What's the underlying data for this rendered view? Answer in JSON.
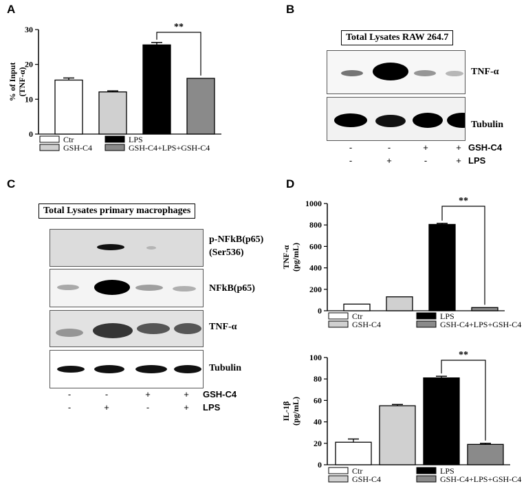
{
  "panels": {
    "A": "A",
    "B": "B",
    "C": "C",
    "D": "D"
  },
  "legend": {
    "ctr": "Ctr",
    "lps": "LPS",
    "gsh": "GSH-C4",
    "combo": "GSH-C4+LPS+GSH-C4"
  },
  "colors": {
    "ctr": "#ffffff",
    "gsh": "#d0d0d0",
    "lps": "#000000",
    "combo": "#8a8a8a"
  },
  "significance": "**",
  "chart_data": [
    {
      "id": "A",
      "type": "bar",
      "categories": [
        "Ctr",
        "GSH-C4",
        "LPS",
        "GSH-C4+LPS+GSH-C4"
      ],
      "values": [
        15.5,
        12.1,
        25.6,
        16.0
      ],
      "errors": [
        0.6,
        0.3,
        0.7,
        0
      ],
      "ylabel": [
        "% of Input",
        "(TNF-α)"
      ],
      "yticks": [
        0,
        10,
        20,
        30
      ],
      "ylim": [
        0,
        30
      ]
    },
    {
      "id": "D-top",
      "type": "bar",
      "categories": [
        "Ctr",
        "GSH-C4",
        "LPS",
        "GSH-C4+LPS+GSH-C4"
      ],
      "values": [
        62,
        130,
        805,
        30
      ],
      "errors": [
        0,
        0,
        10,
        0
      ],
      "ylabel": [
        "TNF-α",
        "(pg/mL)"
      ],
      "yticks": [
        0,
        200,
        400,
        600,
        800,
        1000
      ],
      "ylim": [
        0,
        1000
      ]
    },
    {
      "id": "D-bottom",
      "type": "bar",
      "categories": [
        "Ctr",
        "GSH-C4",
        "LPS",
        "GSH-C4+LPS+GSH-C4"
      ],
      "values": [
        21,
        55,
        81,
        19
      ],
      "errors": [
        3,
        1.2,
        1.5,
        1
      ],
      "ylabel": [
        "IL-1β",
        "(pg/mL)"
      ],
      "yticks": [
        0,
        20,
        40,
        60,
        80,
        100
      ],
      "ylim": [
        0,
        100
      ]
    }
  ],
  "blotB": {
    "title": "Total Lysates RAW 264.7",
    "rows": [
      "TNF-α",
      "Tubulin"
    ],
    "treatments": [
      {
        "name": "GSH-C4",
        "signs": [
          "-",
          "-",
          "+",
          "+"
        ]
      },
      {
        "name": "LPS",
        "signs": [
          "-",
          "+",
          "-",
          "+"
        ]
      }
    ]
  },
  "blotC": {
    "title": "Total Lysates primary macrophages",
    "rows": [
      "p-NFkB(p65)",
      "(Ser536)",
      "NFkB(p65)",
      "TNF-α",
      "Tubulin"
    ],
    "treatments": [
      {
        "name": "GSH-C4",
        "signs": [
          "-",
          "-",
          "+",
          "+"
        ]
      },
      {
        "name": "LPS",
        "signs": [
          "-",
          "+",
          "-",
          "+"
        ]
      }
    ]
  }
}
